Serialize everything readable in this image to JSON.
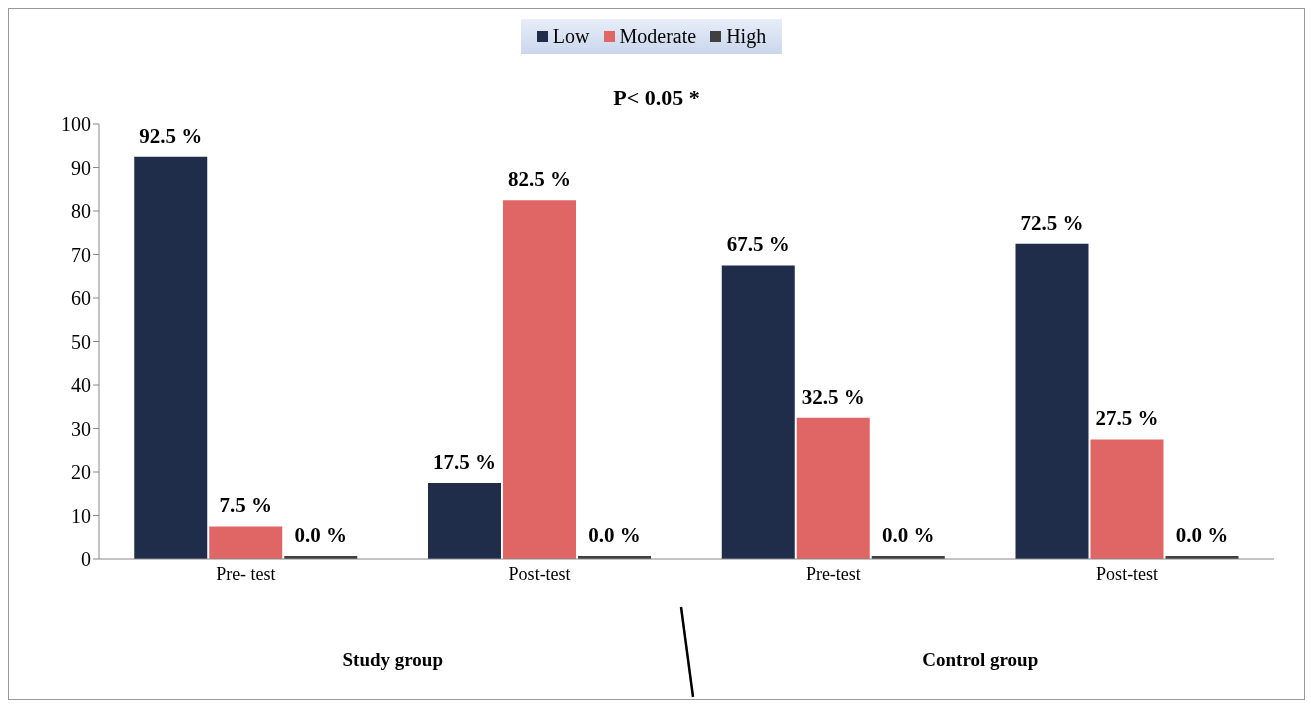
{
  "chart_data": {
    "type": "bar",
    "categories": [
      "Pre- test",
      "Post-test",
      "Pre-test",
      "Post-test"
    ],
    "series": [
      {
        "name": "Low",
        "color": "#1f2d4a",
        "values": [
          92.5,
          17.5,
          67.5,
          72.5
        ],
        "value_labels": [
          "92.5 %",
          "17.5 %",
          "67.5 %",
          "72.5 %"
        ]
      },
      {
        "name": "Moderate",
        "color": "#e06666",
        "values": [
          7.5,
          82.5,
          32.5,
          27.5
        ],
        "value_labels": [
          "7.5 %",
          "82.5 %",
          "32.5 %",
          "27.5 %"
        ]
      },
      {
        "name": "High",
        "color": "#404040",
        "values": [
          0,
          0,
          0,
          0
        ],
        "value_labels": [
          "0.0 %",
          "0.0 %",
          "0.0 %",
          "0.0 %"
        ]
      }
    ],
    "ylim": [
      0,
      100
    ],
    "yticks": [
      0,
      10,
      20,
      30,
      40,
      50,
      60,
      70,
      80,
      90,
      100
    ],
    "legend": "top",
    "annotations": [
      "P< 0.05 *",
      "Study group",
      "Control group"
    ]
  }
}
